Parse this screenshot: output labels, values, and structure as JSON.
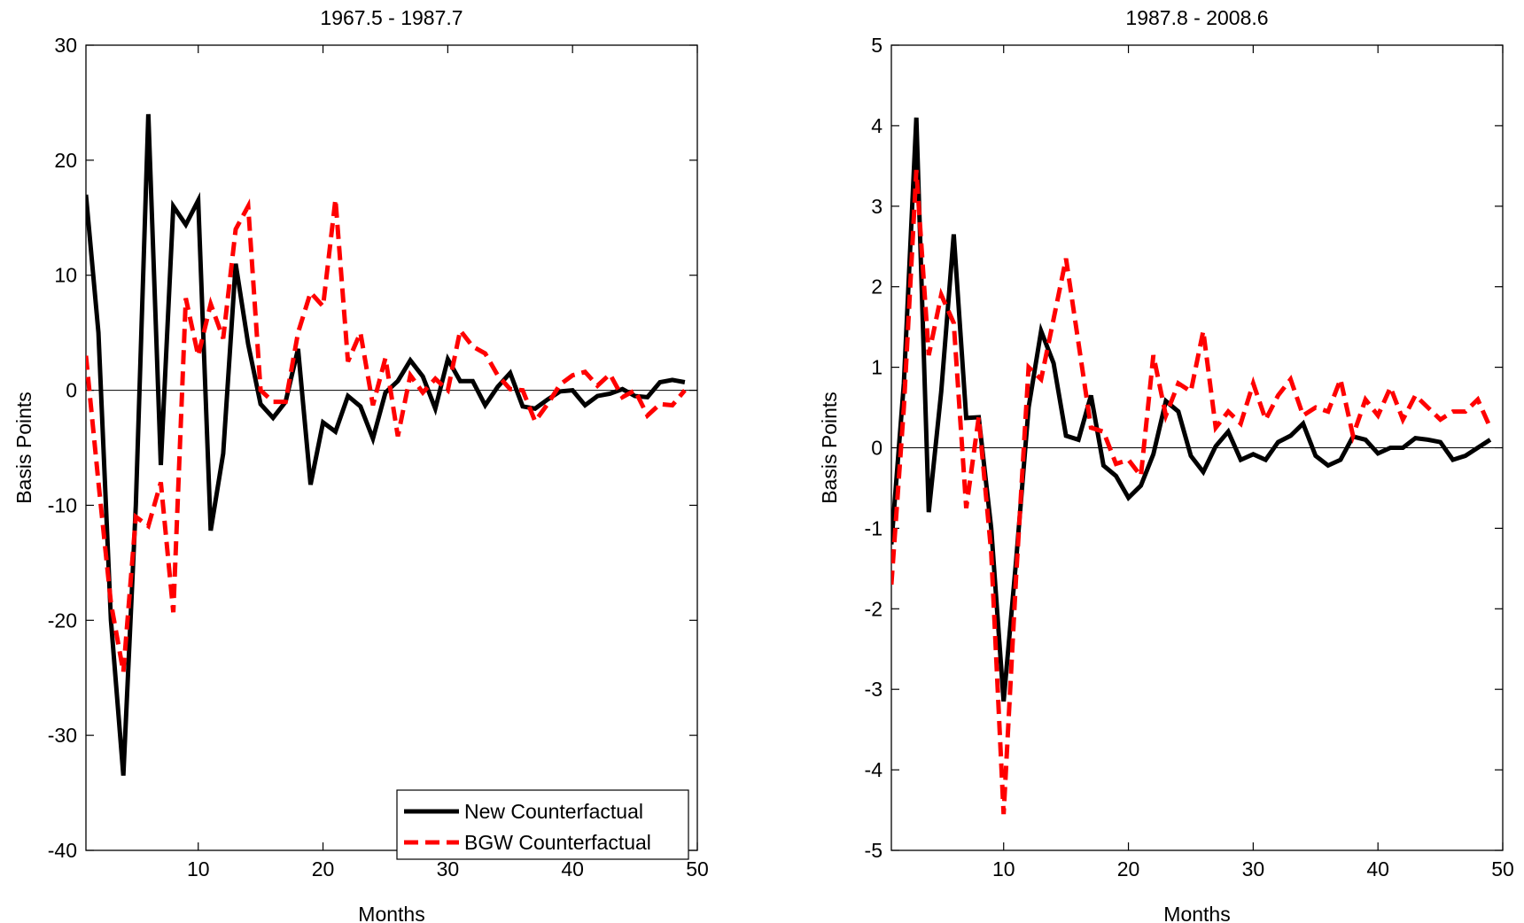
{
  "chart_data": [
    {
      "type": "line",
      "title": "1967.5 - 1987.7",
      "xlabel": "Months",
      "ylabel": "Basis Points",
      "xlim": [
        1,
        50
      ],
      "ylim": [
        -40,
        30
      ],
      "xticks": [
        10,
        20,
        30,
        40,
        50
      ],
      "yticks": [
        -40,
        -30,
        -20,
        -10,
        0,
        10,
        20,
        30
      ],
      "legend": {
        "position": "bottom-right"
      },
      "series": [
        {
          "name": "New Counterfactual",
          "color": "#000000",
          "style": "solid",
          "x": [
            1,
            2,
            3,
            4,
            5,
            6,
            7,
            8,
            9,
            10,
            11,
            12,
            13,
            14,
            15,
            16,
            17,
            18,
            19,
            20,
            21,
            22,
            23,
            24,
            25,
            26,
            27,
            28,
            29,
            30,
            31,
            32,
            33,
            34,
            35,
            36,
            37,
            38,
            39,
            40,
            41,
            42,
            43,
            44,
            45,
            46,
            47,
            48,
            49
          ],
          "values": [
            17,
            5,
            -20,
            -33.5,
            -10,
            24,
            -6.5,
            16,
            14.4,
            16.5,
            -12.2,
            -5.5,
            11,
            4,
            -1.2,
            -2.4,
            -1,
            3.6,
            -8.2,
            -2.8,
            -3.6,
            -0.5,
            -1.4,
            -4.2,
            -0.2,
            0.8,
            2.6,
            1.2,
            -1.6,
            2.7,
            0.8,
            0.8,
            -1.3,
            0.3,
            1.5,
            -1.4,
            -1.6,
            -0.8,
            -0.1,
            0,
            -1.3,
            -0.5,
            -0.3,
            0.1,
            -0.5,
            -0.6,
            0.7,
            0.9,
            0.7
          ]
        },
        {
          "name": "BGW Counterfactual",
          "color": "#ff0000",
          "style": "dashed",
          "x": [
            1,
            2,
            3,
            4,
            5,
            6,
            7,
            8,
            9,
            10,
            11,
            12,
            13,
            14,
            15,
            16,
            17,
            18,
            19,
            20,
            21,
            22,
            23,
            24,
            25,
            26,
            27,
            28,
            29,
            30,
            31,
            32,
            33,
            34,
            35,
            36,
            37,
            38,
            39,
            40,
            41,
            42,
            43,
            44,
            45,
            46,
            47,
            48,
            49
          ],
          "values": [
            3,
            -8,
            -18.5,
            -24.5,
            -11,
            -11.8,
            -8,
            -19.3,
            8,
            3,
            7.5,
            4.5,
            14,
            16,
            0,
            -1,
            -1,
            5,
            8.5,
            7.3,
            16.6,
            2.5,
            5,
            -1.3,
            2.8,
            -4,
            1.3,
            -0.2,
            1,
            0,
            5.2,
            3.8,
            3.2,
            1.3,
            0.1,
            0,
            -2.7,
            -1.2,
            0.5,
            1.3,
            1.6,
            0.4,
            1.4,
            -0.6,
            0,
            -2.2,
            -1.2,
            -1.3,
            0
          ]
        }
      ]
    },
    {
      "type": "line",
      "title": "1987.8 - 2008.6",
      "xlabel": "Months",
      "ylabel": "Basis Points",
      "xlim": [
        1,
        50
      ],
      "ylim": [
        -5,
        5
      ],
      "xticks": [
        10,
        20,
        30,
        40,
        50
      ],
      "yticks": [
        -5,
        -4,
        -3,
        -2,
        -1,
        0,
        1,
        2,
        3,
        4,
        5
      ],
      "series": [
        {
          "name": "New Counterfactual",
          "color": "#000000",
          "style": "solid",
          "x": [
            1,
            2,
            3,
            4,
            5,
            6,
            7,
            8,
            9,
            10,
            11,
            12,
            13,
            14,
            15,
            16,
            17,
            18,
            19,
            20,
            21,
            22,
            23,
            24,
            25,
            26,
            27,
            28,
            29,
            30,
            31,
            32,
            33,
            34,
            35,
            36,
            37,
            38,
            39,
            40,
            41,
            42,
            43,
            44,
            45,
            46,
            47,
            48,
            49
          ],
          "values": [
            -1.2,
            0.8,
            4.1,
            -0.8,
            0.7,
            2.65,
            0.37,
            0.38,
            -1,
            -3.15,
            -1.4,
            0.5,
            1.45,
            1.05,
            0.15,
            0.1,
            0.65,
            -0.22,
            -0.35,
            -0.62,
            -0.47,
            -0.08,
            0.58,
            0.45,
            -0.1,
            -0.3,
            0.02,
            0.2,
            -0.15,
            -0.08,
            -0.15,
            0.07,
            0.15,
            0.3,
            -0.1,
            -0.22,
            -0.15,
            0.14,
            0.1,
            -0.07,
            0,
            0,
            0.12,
            0.1,
            0.07,
            -0.15,
            -0.1,
            0,
            0.1
          ]
        },
        {
          "name": "BGW Counterfactual",
          "color": "#ff0000",
          "style": "dashed",
          "x": [
            1,
            2,
            3,
            4,
            5,
            6,
            7,
            8,
            9,
            10,
            11,
            12,
            13,
            14,
            15,
            16,
            17,
            18,
            19,
            20,
            21,
            22,
            23,
            24,
            25,
            26,
            27,
            28,
            29,
            30,
            31,
            32,
            33,
            34,
            35,
            36,
            37,
            38,
            39,
            40,
            41,
            42,
            43,
            44,
            45,
            46,
            47,
            48,
            49
          ],
          "values": [
            -1.7,
            0.5,
            3.45,
            1.15,
            1.9,
            1.55,
            -0.75,
            0.38,
            -1.3,
            -4.55,
            -1.6,
            1,
            0.85,
            1.6,
            2.35,
            1.3,
            0.25,
            0.2,
            -0.2,
            -0.15,
            -0.35,
            1.15,
            0.4,
            0.8,
            0.7,
            1.45,
            0.25,
            0.45,
            0.3,
            0.8,
            0.35,
            0.65,
            0.85,
            0.4,
            0.5,
            0.45,
            0.85,
            0.15,
            0.6,
            0.4,
            0.75,
            0.35,
            0.65,
            0.5,
            0.35,
            0.45,
            0.45,
            0.6,
            0.25
          ]
        }
      ]
    }
  ]
}
